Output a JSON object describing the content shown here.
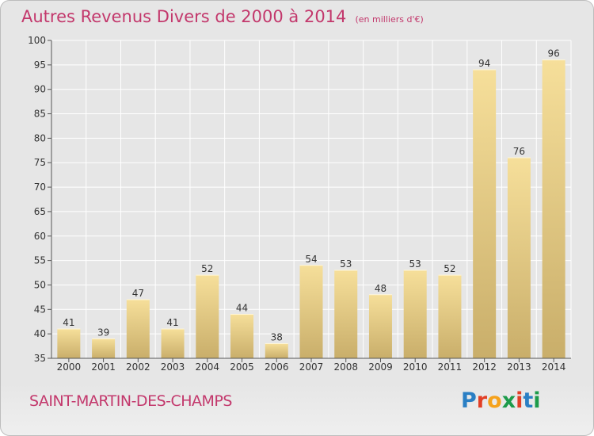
{
  "chart_data": {
    "type": "bar",
    "title": "Autres Revenus Divers de 2000 à 2014",
    "subtitle": "(en milliers d'€)",
    "categories": [
      "2000",
      "2001",
      "2002",
      "2003",
      "2004",
      "2005",
      "2006",
      "2007",
      "2008",
      "2009",
      "2010",
      "2011",
      "2012",
      "2013",
      "2014"
    ],
    "values": [
      41,
      39,
      47,
      41,
      52,
      44,
      38,
      54,
      53,
      48,
      53,
      52,
      94,
      76,
      96
    ],
    "ylim": [
      35,
      100
    ],
    "yticks": [
      35,
      40,
      45,
      50,
      55,
      60,
      65,
      70,
      75,
      80,
      85,
      90,
      95,
      100
    ],
    "grid": true,
    "colors": {
      "bar_light": "#f6df9a",
      "bar_dark": "#c9ae6a",
      "grid": "#ffffff",
      "text": "#333333"
    }
  },
  "footer": {
    "place_name": "SAINT-MARTIN-DES-CHAMPS",
    "logo_text": "Proxiti"
  },
  "logo_colors": [
    "#2a7fc4",
    "#e23f26",
    "#f5a21c",
    "#1d9b4a",
    "#e23f26",
    "#2a7fc4",
    "#1d9b4a"
  ]
}
